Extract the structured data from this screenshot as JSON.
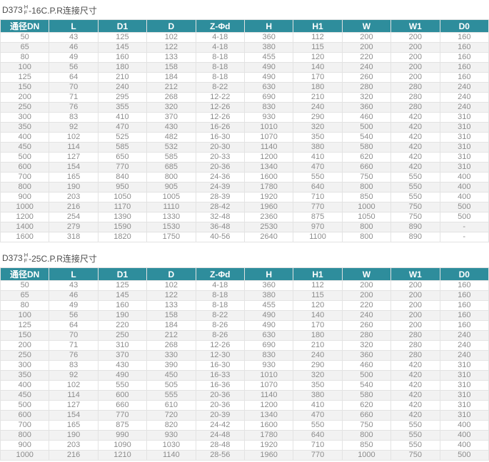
{
  "colors": {
    "header_bg": "#2e8d9c",
    "header_text": "#ffffff",
    "row_alt_bg": "#f2f2f2",
    "cell_text": "#8c8c8c",
    "border": "#e3e3e3",
    "title_text": "#4d4d4d"
  },
  "tables": [
    {
      "title": {
        "prefix": "D373",
        "stack_top": "H",
        "stack_bottom": "F",
        "suffix": "-16C.P.R连接尺寸"
      },
      "headers": [
        "通径DN",
        "L",
        "D1",
        "D",
        "Z-Φd",
        "H",
        "H1",
        "W",
        "W1",
        "D0"
      ],
      "rows": [
        [
          "50",
          "43",
          "125",
          "102",
          "4-18",
          "360",
          "112",
          "200",
          "200",
          "160"
        ],
        [
          "65",
          "46",
          "145",
          "122",
          "4-18",
          "380",
          "115",
          "200",
          "200",
          "160"
        ],
        [
          "80",
          "49",
          "160",
          "133",
          "8-18",
          "455",
          "120",
          "220",
          "200",
          "160"
        ],
        [
          "100",
          "56",
          "180",
          "158",
          "8-18",
          "490",
          "140",
          "240",
          "200",
          "160"
        ],
        [
          "125",
          "64",
          "210",
          "184",
          "8-18",
          "490",
          "170",
          "260",
          "200",
          "160"
        ],
        [
          "150",
          "70",
          "240",
          "212",
          "8-22",
          "630",
          "180",
          "280",
          "280",
          "240"
        ],
        [
          "200",
          "71",
          "295",
          "268",
          "12-22",
          "690",
          "210",
          "320",
          "280",
          "240"
        ],
        [
          "250",
          "76",
          "355",
          "320",
          "12-26",
          "830",
          "240",
          "360",
          "280",
          "240"
        ],
        [
          "300",
          "83",
          "410",
          "370",
          "12-26",
          "930",
          "290",
          "460",
          "420",
          "310"
        ],
        [
          "350",
          "92",
          "470",
          "430",
          "16-26",
          "1010",
          "320",
          "500",
          "420",
          "310"
        ],
        [
          "400",
          "102",
          "525",
          "482",
          "16-30",
          "1070",
          "350",
          "540",
          "420",
          "310"
        ],
        [
          "450",
          "114",
          "585",
          "532",
          "20-30",
          "1140",
          "380",
          "580",
          "420",
          "310"
        ],
        [
          "500",
          "127",
          "650",
          "585",
          "20-33",
          "1200",
          "410",
          "620",
          "420",
          "310"
        ],
        [
          "600",
          "154",
          "770",
          "685",
          "20-36",
          "1340",
          "470",
          "660",
          "420",
          "310"
        ],
        [
          "700",
          "165",
          "840",
          "800",
          "24-36",
          "1600",
          "550",
          "750",
          "550",
          "400"
        ],
        [
          "800",
          "190",
          "950",
          "905",
          "24-39",
          "1780",
          "640",
          "800",
          "550",
          "400"
        ],
        [
          "900",
          "203",
          "1050",
          "1005",
          "28-39",
          "1920",
          "710",
          "850",
          "550",
          "400"
        ],
        [
          "1000",
          "216",
          "1170",
          "1110",
          "28-42",
          "1960",
          "770",
          "1000",
          "750",
          "500"
        ],
        [
          "1200",
          "254",
          "1390",
          "1330",
          "32-48",
          "2360",
          "875",
          "1050",
          "750",
          "500"
        ],
        [
          "1400",
          "279",
          "1590",
          "1530",
          "36-48",
          "2530",
          "970",
          "800",
          "890",
          "-"
        ],
        [
          "1600",
          "318",
          "1820",
          "1750",
          "40-56",
          "2640",
          "1100",
          "800",
          "890",
          "-"
        ]
      ]
    },
    {
      "title": {
        "prefix": "D373",
        "stack_top": "H",
        "stack_bottom": "F",
        "suffix": "-25C.P.R连接尺寸"
      },
      "headers": [
        "通径DN",
        "L",
        "D1",
        "D",
        "Z-Φd",
        "H",
        "H1",
        "W",
        "W1",
        "D0"
      ],
      "rows": [
        [
          "50",
          "43",
          "125",
          "102",
          "4-18",
          "360",
          "112",
          "200",
          "200",
          "160"
        ],
        [
          "65",
          "46",
          "145",
          "122",
          "8-18",
          "380",
          "115",
          "200",
          "200",
          "160"
        ],
        [
          "80",
          "49",
          "160",
          "133",
          "8-18",
          "455",
          "120",
          "220",
          "200",
          "160"
        ],
        [
          "100",
          "56",
          "190",
          "158",
          "8-22",
          "490",
          "140",
          "240",
          "200",
          "160"
        ],
        [
          "125",
          "64",
          "220",
          "184",
          "8-26",
          "490",
          "170",
          "260",
          "200",
          "160"
        ],
        [
          "150",
          "70",
          "250",
          "212",
          "8-26",
          "630",
          "180",
          "280",
          "280",
          "240"
        ],
        [
          "200",
          "71",
          "310",
          "268",
          "12-26",
          "690",
          "210",
          "320",
          "280",
          "240"
        ],
        [
          "250",
          "76",
          "370",
          "330",
          "12-30",
          "830",
          "240",
          "360",
          "280",
          "240"
        ],
        [
          "300",
          "83",
          "430",
          "390",
          "16-30",
          "930",
          "290",
          "460",
          "420",
          "310"
        ],
        [
          "350",
          "92",
          "490",
          "450",
          "16-33",
          "1010",
          "320",
          "500",
          "420",
          "310"
        ],
        [
          "400",
          "102",
          "550",
          "505",
          "16-36",
          "1070",
          "350",
          "540",
          "420",
          "310"
        ],
        [
          "450",
          "114",
          "600",
          "555",
          "20-36",
          "1140",
          "380",
          "580",
          "420",
          "310"
        ],
        [
          "500",
          "127",
          "660",
          "610",
          "20-36",
          "1200",
          "410",
          "620",
          "420",
          "310"
        ],
        [
          "600",
          "154",
          "770",
          "720",
          "20-39",
          "1340",
          "470",
          "660",
          "420",
          "310"
        ],
        [
          "700",
          "165",
          "875",
          "820",
          "24-42",
          "1600",
          "550",
          "750",
          "550",
          "400"
        ],
        [
          "800",
          "190",
          "990",
          "930",
          "24-48",
          "1780",
          "640",
          "800",
          "550",
          "400"
        ],
        [
          "900",
          "203",
          "1090",
          "1030",
          "28-48",
          "1920",
          "710",
          "850",
          "550",
          "400"
        ],
        [
          "1000",
          "216",
          "1210",
          "1140",
          "28-56",
          "1960",
          "770",
          "1000",
          "750",
          "500"
        ]
      ]
    }
  ]
}
